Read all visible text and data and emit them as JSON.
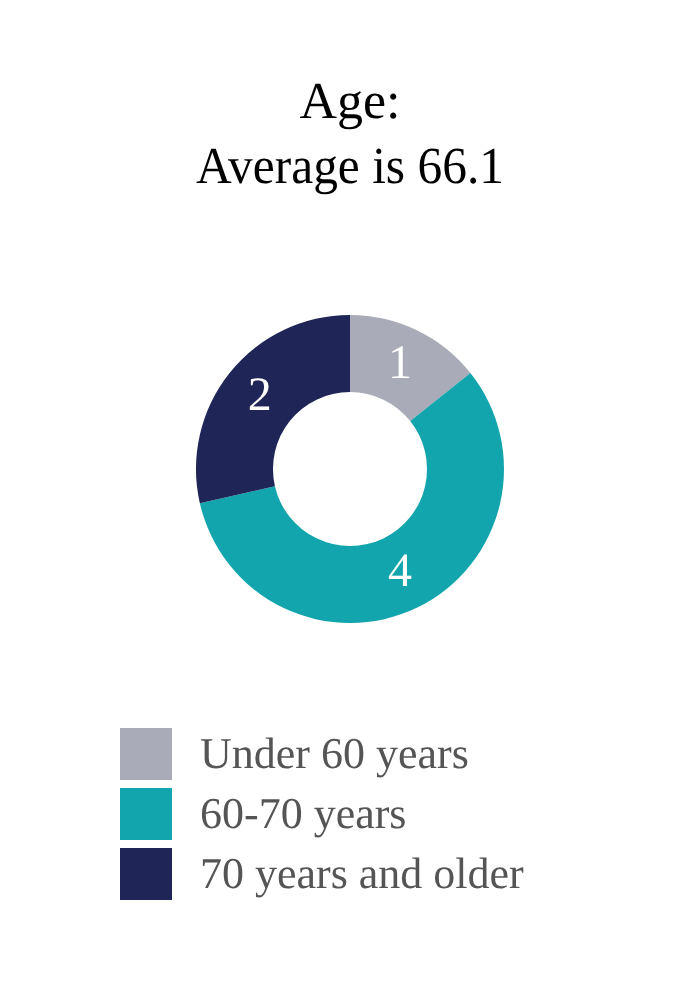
{
  "chart_data": {
    "type": "donut",
    "title": "Age:\nAverage is 66.1",
    "categories": [
      "Under 60 years",
      "60-70 years",
      "70 years and older"
    ],
    "values": [
      1,
      4,
      2
    ],
    "colors": [
      "#a9abb8",
      "#13a5ad",
      "#1f2556"
    ],
    "data_labels": true,
    "legend": "bottom"
  }
}
